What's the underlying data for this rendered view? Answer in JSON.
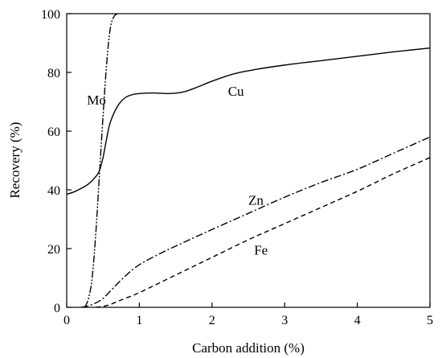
{
  "chart_data": {
    "type": "line",
    "title": "",
    "xlabel": "Carbon addition (%)",
    "ylabel": "Recovery (%)",
    "xlim": [
      0,
      5
    ],
    "ylim": [
      0,
      100
    ],
    "x_ticks": [
      0,
      1,
      2,
      3,
      4,
      5
    ],
    "y_ticks": [
      0,
      20,
      40,
      60,
      80,
      100
    ],
    "x_tick_labels": [
      "0",
      "1",
      "2",
      "3",
      "4",
      "5"
    ],
    "y_tick_labels": [
      "0",
      "20",
      "40",
      "60",
      "80",
      "100"
    ],
    "grid": false,
    "legend": "none",
    "series": [
      {
        "name": "Cu",
        "style": "solid",
        "x": [
          0,
          0.1,
          0.2,
          0.3,
          0.4,
          0.45,
          0.5,
          0.55,
          0.6,
          0.7,
          0.8,
          0.9,
          1.0,
          1.2,
          1.4,
          1.6,
          1.8,
          2.0,
          2.3,
          2.6,
          3.0,
          3.5,
          4.0,
          4.5,
          5.0
        ],
        "y": [
          38.5,
          39.3,
          40.5,
          42.0,
          44.5,
          46.5,
          51.0,
          57.5,
          63.0,
          68.5,
          71.3,
          72.4,
          72.8,
          73.0,
          72.8,
          73.3,
          75.0,
          77.0,
          79.5,
          81.0,
          82.5,
          84.0,
          85.5,
          87.0,
          88.3
        ]
      },
      {
        "name": "Mo",
        "style": "dash-dot-dot",
        "x": [
          0.25,
          0.3,
          0.35,
          0.4,
          0.45,
          0.5,
          0.55,
          0.6,
          0.65,
          0.7
        ],
        "y": [
          0,
          3,
          10,
          25,
          45,
          65,
          83,
          95,
          99,
          100
        ]
      },
      {
        "name": "Zn",
        "style": "dash-dot",
        "x": [
          0.2,
          0.3,
          0.4,
          0.5,
          0.6,
          0.8,
          1.0,
          1.3,
          1.6,
          2.0,
          2.5,
          3.0,
          3.5,
          4.0,
          4.5,
          5.0
        ],
        "y": [
          0,
          0.5,
          1.5,
          3.0,
          5.5,
          10.5,
          14.5,
          18.5,
          22.0,
          26.5,
          32.0,
          37.5,
          42.5,
          47.0,
          52.5,
          58.0
        ]
      },
      {
        "name": "Fe",
        "style": "dashed",
        "x": [
          0.4,
          0.5,
          0.6,
          0.7,
          0.8,
          1.0,
          1.5,
          2.0,
          2.5,
          3.0,
          3.5,
          4.0,
          4.5,
          5.0
        ],
        "y": [
          0,
          0.3,
          1.0,
          2.0,
          3.0,
          5.0,
          11.0,
          17.0,
          23.0,
          28.5,
          34.0,
          39.5,
          45.5,
          51.0
        ]
      }
    ],
    "annotations": [
      {
        "text": "Mo",
        "x": 0.28,
        "y": 69
      },
      {
        "text": "Cu",
        "x": 2.22,
        "y": 72
      },
      {
        "text": "Zn",
        "x": 2.5,
        "y": 35
      },
      {
        "text": "Fe",
        "x": 2.58,
        "y": 18
      }
    ]
  }
}
